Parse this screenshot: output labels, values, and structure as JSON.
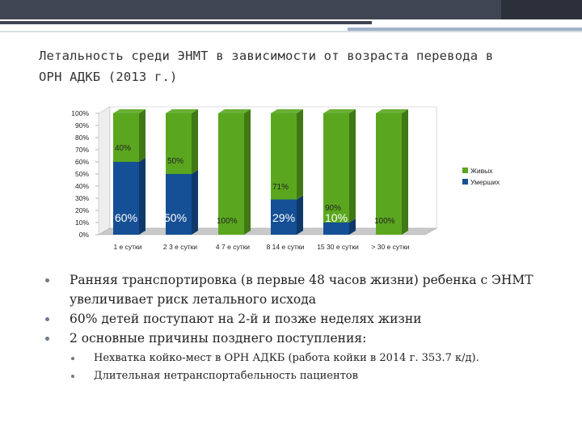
{
  "slide": {
    "title_line1": "Летальность среди ЭНМТ в зависимости от возраста перевода в",
    "title_line2": "ОРН АДКБ (2013 г.)"
  },
  "bullets": [
    "Ранняя транспортировка (в первые 48 часов жизни) ребенка с ЭНМТ увеличивает риск летального исхода",
    "60% детей поступают на 2-й и позже неделях жизни",
    "2 основные причины позднего поступления:"
  ],
  "sub_bullets": [
    "Нехватка койко-мест в ОРН АДКБ (работа койки в 2014 г. 353.7 к/д).",
    "Длительная нетранспортабельность пациентов"
  ],
  "colors": {
    "alive": "#5aa71f",
    "dead": "#154f95",
    "topbar": "#3f4552"
  },
  "chart_data": {
    "type": "bar",
    "stacked": true,
    "categories": [
      "1 е сутки",
      "2 3 е сутки",
      "4 7 е сутки",
      "8 14 е сутки",
      "15 30 е сутки",
      "> 30 е сутки"
    ],
    "series": [
      {
        "name": "Умерших",
        "values": [
          60,
          50,
          0,
          29,
          10,
          0
        ],
        "labels": [
          "60%",
          "50%",
          "",
          "29%",
          "10%",
          ""
        ]
      },
      {
        "name": "Живых",
        "values": [
          40,
          50,
          100,
          71,
          90,
          100
        ],
        "labels": [
          "40%",
          "50%",
          "100%",
          "71%",
          "90%",
          "100%"
        ]
      }
    ],
    "yticks": [
      "0%",
      "10%",
      "20%",
      "30%",
      "40%",
      "50%",
      "60%",
      "70%",
      "80%",
      "90%",
      "100%"
    ],
    "ylim": [
      0,
      100
    ],
    "legend": "right",
    "grid": false
  }
}
